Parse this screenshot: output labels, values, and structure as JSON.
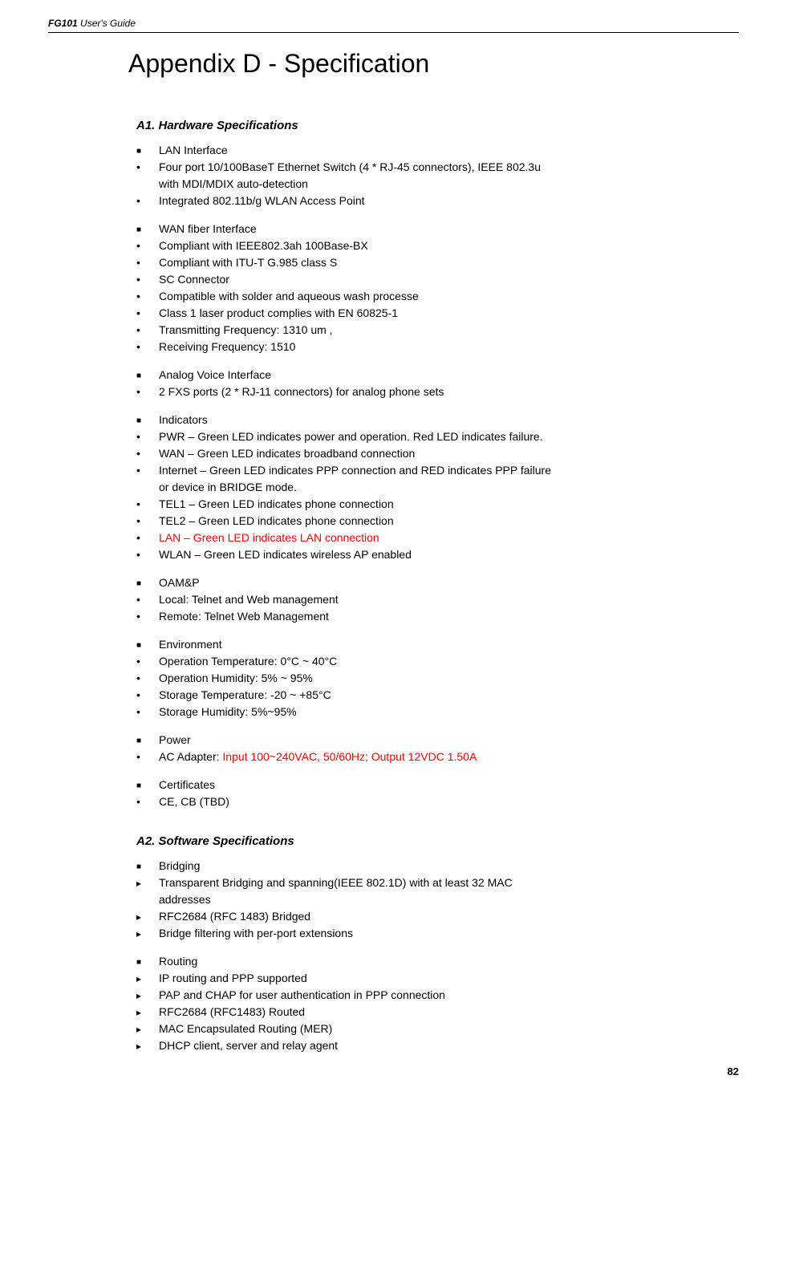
{
  "header": {
    "bold": "FG101",
    "rest": " User's Guide"
  },
  "title": "Appendix D - Specification",
  "a1": {
    "heading": "A1.   Hardware Specifications",
    "groups": [
      {
        "header": "LAN Interface",
        "items": [
          {
            "text": "Four port 10/100BaseT Ethernet Switch (4 * RJ-45 connectors), IEEE 802.3u",
            "cont": "with MDI/MDIX auto-detection"
          },
          {
            "text": "Integrated 802.11b/g WLAN Access Point"
          }
        ]
      },
      {
        "header": "WAN fiber Interface",
        "items": [
          {
            "text": "Compliant with IEEE802.3ah 100Base-BX"
          },
          {
            "text": "Compliant with ITU-T G.985 class S"
          },
          {
            "text": "SC Connector"
          },
          {
            "text": "Compatible with solder and aqueous wash processe"
          },
          {
            "text": "Class 1 laser product complies with EN 60825-1"
          },
          {
            "text": "Transmitting Frequency: 1310 um ,"
          },
          {
            "text": "Receiving Frequency: 1510"
          }
        ]
      },
      {
        "header": "Analog Voice Interface",
        "items": [
          {
            "text": "2 FXS ports (2 * RJ-11 connectors) for analog phone sets"
          }
        ]
      },
      {
        "header": "Indicators",
        "items": [
          {
            "text": "PWR – Green LED indicates power and operation. Red LED indicates failure."
          },
          {
            "text": "WAN – Green LED indicates broadband connection"
          },
          {
            "text": "Internet – Green LED indicates PPP connection and RED indicates PPP failure",
            "cont": "or device in BRIDGE mode."
          },
          {
            "text": "TEL1 – Green LED indicates phone connection"
          },
          {
            "text": "TEL2 – Green LED indicates phone connection"
          },
          {
            "text": "LAN – Green LED indicates LAN connection",
            "red": true
          },
          {
            "text": "WLAN – Green LED indicates wireless AP enabled"
          }
        ]
      },
      {
        "header": "OAM&P",
        "items": [
          {
            "text": "Local: Telnet and Web management"
          },
          {
            "text": "Remote: Telnet Web Management"
          }
        ]
      },
      {
        "header": "Environment",
        "items": [
          {
            "text": "Operation Temperature: 0°C ~ 40°C"
          },
          {
            "text": "Operation Humidity: 5% ~ 95%"
          },
          {
            "text": "Storage Temperature: -20 ~ +85°C"
          },
          {
            "text": "Storage Humidity: 5%~95%"
          }
        ]
      },
      {
        "header": "Power",
        "items": [
          {
            "text": "AC Adapter: ",
            "red_suffix": "Input 100~240VAC, 50/60Hz; Output 12VDC 1.50A"
          }
        ]
      },
      {
        "header": "Certificates",
        "items": [
          {
            "text": "CE, CB (TBD)"
          }
        ]
      }
    ]
  },
  "a2": {
    "heading": "A2.   Software Specifications",
    "groups": [
      {
        "header": " Bridging",
        "items": [
          {
            "text": "Transparent Bridging and spanning(IEEE 802.1D) with at least 32 MAC",
            "cont": "addresses"
          },
          {
            "text": "RFC2684 (RFC 1483) Bridged"
          },
          {
            "text": "Bridge filtering with per-port extensions"
          }
        ]
      },
      {
        "header": " Routing",
        "items": [
          {
            "text": "IP routing and PPP supported"
          },
          {
            "text": "PAP and CHAP for user authentication in PPP connection"
          },
          {
            "text": "RFC2684 (RFC1483) Routed"
          },
          {
            "text": "MAC Encapsulated Routing (MER)"
          },
          {
            "text": "DHCP client, server and relay agent"
          }
        ]
      }
    ]
  },
  "page_number": "82"
}
